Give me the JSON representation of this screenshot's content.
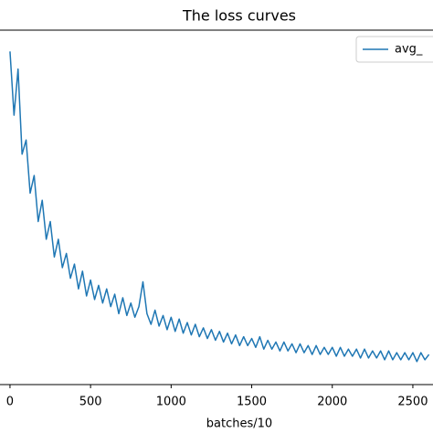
{
  "chart_data": {
    "type": "line",
    "title": "The loss curves",
    "x_label": "batches/10",
    "x": [
      0,
      25,
      50,
      75,
      100,
      125,
      150,
      175,
      200,
      225,
      250,
      275,
      300,
      325,
      350,
      375,
      400,
      425,
      450,
      475,
      500,
      525,
      550,
      575,
      600,
      625,
      650,
      675,
      700,
      725,
      750,
      775,
      800,
      825,
      850,
      875,
      900,
      925,
      950,
      975,
      1000,
      1025,
      1050,
      1075,
      1100,
      1125,
      1150,
      1175,
      1200,
      1225,
      1250,
      1275,
      1300,
      1325,
      1350,
      1375,
      1400,
      1425,
      1450,
      1475,
      1500,
      1525,
      1550,
      1575,
      1600,
      1625,
      1650,
      1675,
      1700,
      1725,
      1750,
      1775,
      1800,
      1825,
      1850,
      1875,
      1900,
      1925,
      1950,
      1975,
      2000,
      2025,
      2050,
      2075,
      2100,
      2125,
      2150,
      2175,
      2200,
      2225,
      2250,
      2275,
      2300,
      2325,
      2350,
      2375,
      2400,
      2425,
      2450,
      2475,
      2500,
      2525,
      2550,
      2575,
      2600
    ],
    "series": [
      {
        "name": "avg_",
        "color": "#1f77b4",
        "values": [
          9.4,
          7.6,
          8.9,
          6.5,
          6.9,
          5.4,
          5.9,
          4.6,
          5.2,
          4.1,
          4.6,
          3.6,
          4.1,
          3.3,
          3.7,
          3.0,
          3.4,
          2.7,
          3.2,
          2.5,
          2.95,
          2.4,
          2.8,
          2.3,
          2.7,
          2.2,
          2.55,
          2.0,
          2.45,
          1.95,
          2.3,
          1.9,
          2.2,
          2.9,
          2.0,
          1.7,
          2.1,
          1.65,
          1.95,
          1.55,
          1.9,
          1.5,
          1.85,
          1.45,
          1.75,
          1.4,
          1.7,
          1.35,
          1.6,
          1.3,
          1.55,
          1.25,
          1.5,
          1.2,
          1.45,
          1.15,
          1.4,
          1.1,
          1.35,
          1.1,
          1.3,
          1.05,
          1.35,
          1.0,
          1.25,
          1.0,
          1.2,
          0.95,
          1.2,
          0.95,
          1.15,
          0.9,
          1.15,
          0.9,
          1.1,
          0.85,
          1.1,
          0.85,
          1.05,
          0.85,
          1.05,
          0.8,
          1.05,
          0.8,
          1.0,
          0.8,
          1.0,
          0.75,
          1.0,
          0.75,
          0.95,
          0.75,
          0.95,
          0.7,
          0.95,
          0.7,
          0.9,
          0.7,
          0.9,
          0.7,
          0.9,
          0.65,
          0.9,
          0.7,
          0.85
        ]
      }
    ],
    "xlim": [
      -62,
      2625
    ],
    "xticks": [
      0,
      500,
      1000,
      1500,
      2000,
      2500
    ],
    "ylim": [
      0,
      10
    ],
    "legend": "upper right"
  }
}
